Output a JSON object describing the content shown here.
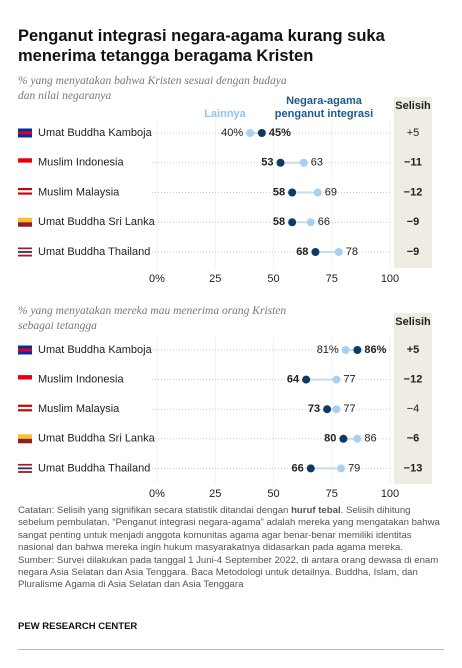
{
  "header": {
    "title": "Penganut integrasi negara-agama kurang suka menerima tetangga beragama Kristen"
  },
  "chart_data": [
    {
      "type": "dot",
      "subtitle": "% yang menyatakan bahwa Kristen sesuai dengan budaya dan nilai negaranya",
      "categories": [
        "Umat Buddha Kamboja",
        "Muslim Indonesia",
        "Muslim Malaysia",
        "Umat Buddha Sri Lanka",
        "Umat Buddha Thailand"
      ],
      "series": [
        {
          "name": "Lainnya",
          "color": "#a9d1ef",
          "values": [
            40,
            63,
            69,
            66,
            78
          ],
          "value_labels": [
            "40%",
            "63",
            "69",
            "66",
            "78"
          ]
        },
        {
          "name": "Negara-agama penganut integrasi",
          "color": "#0d3b66",
          "values": [
            45,
            53,
            58,
            58,
            68
          ],
          "value_labels": [
            "45%",
            "53",
            "58",
            "58",
            "68"
          ]
        }
      ],
      "diff": {
        "name": "Selisih",
        "values": [
          5,
          -11,
          -12,
          -9,
          -9
        ],
        "value_labels": [
          "+5",
          "−11",
          "−12",
          "−9",
          "−9"
        ],
        "bold": [
          false,
          true,
          true,
          true,
          true
        ]
      },
      "xlim": [
        0,
        100
      ],
      "xticks": [
        {
          "value": 0,
          "label": "0%"
        },
        25,
        50,
        75,
        100
      ]
    },
    {
      "type": "dot",
      "subtitle": "% yang menyatakan mereka mau menerima orang Kristen sebagai tetangga",
      "categories": [
        "Umat Buddha Kamboja",
        "Muslim Indonesia",
        "Muslim Malaysia",
        "Umat Buddha Sri Lanka",
        "Umat Buddha Thailand"
      ],
      "series": [
        {
          "color": "#a9d1ef",
          "values": [
            81,
            77,
            77,
            86,
            79
          ],
          "value_labels": [
            "81%",
            "77",
            "77",
            "86",
            "79"
          ]
        },
        {
          "color": "#0d3b66",
          "values": [
            86,
            64,
            73,
            80,
            66
          ],
          "value_labels": [
            "86%",
            "64",
            "73",
            "80",
            "66"
          ]
        }
      ],
      "diff": {
        "name": "Selisih",
        "values": [
          5,
          -12,
          -4,
          -6,
          -13
        ],
        "value_labels": [
          "+5",
          "−12",
          "−4",
          "−6",
          "−13"
        ],
        "bold": [
          true,
          true,
          false,
          true,
          true
        ]
      },
      "xlim": [
        0,
        100
      ],
      "xticks": [
        {
          "value": 0,
          "label": "0%"
        },
        25,
        50,
        75,
        100
      ]
    }
  ],
  "notes": {
    "note": [
      "Catatan: Selisih yang signifikan secara statistik ditandai dengan ",
      "huruf tebal",
      ". Selisih dihitung sebelum pembulatan. “Penganut integrasi negara-agama” adalah mereka yang mengatakan bahwa sangat penting untuk menjadi anggota komunitas agama agar benar-benar memiliki identitas nasional dan bahwa mereka ingin hukum masyarakatnya didasarkan pada agama mereka."
    ],
    "source": "Sumber: Survei dilakukan pada tanggal 1 Juni-4 September 2022, di antara orang dewasa di enam negara Asia Selatan dan Asia Tenggara. Baca Metodologi untuk detailnya. Buddha, Islam, dan Pluralisme Agama di Asia Selatan dan Asia Tenggara"
  },
  "footer": "PEW RESEARCH CENTER"
}
